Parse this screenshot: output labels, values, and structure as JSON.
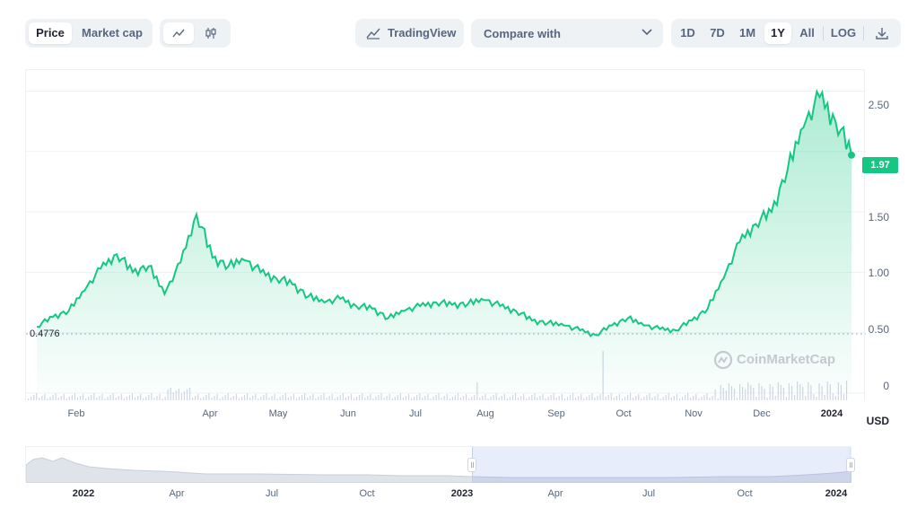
{
  "toolbar": {
    "type_tabs": [
      "Price",
      "Market cap"
    ],
    "active_type": "Price",
    "view_icons": [
      "line-chart-icon",
      "candlestick-icon"
    ],
    "tradingview_label": "TradingView",
    "compare_label": "Compare with",
    "ranges": [
      "1D",
      "7D",
      "1M",
      "1Y",
      "All"
    ],
    "active_range": "1Y",
    "log_label": "LOG",
    "download_icon": "download-icon"
  },
  "chart": {
    "current_price": "1.97",
    "min_label": "0.4776",
    "currency": "USD",
    "y_ticks": [
      "2.50",
      "1.97",
      "1.50",
      "1.00",
      "0.50",
      "0"
    ],
    "x_ticks": [
      "Feb",
      "Apr",
      "May",
      "Jun",
      "Jul",
      "Aug",
      "Sep",
      "Oct",
      "Nov",
      "Dec",
      "2024"
    ],
    "watermark": "CoinMarketCap",
    "color": "#16c784"
  },
  "chart_data": {
    "type": "area",
    "x": [
      "2023-01-15",
      "2023-01-22",
      "2023-02-01",
      "2023-02-08",
      "2023-02-15",
      "2023-02-22",
      "2023-03-01",
      "2023-03-08",
      "2023-03-15",
      "2023-03-22",
      "2023-03-29",
      "2023-04-05",
      "2023-04-12",
      "2023-04-19",
      "2023-04-26",
      "2023-05-03",
      "2023-05-10",
      "2023-05-17",
      "2023-05-24",
      "2023-05-31",
      "2023-06-07",
      "2023-06-14",
      "2023-06-21",
      "2023-06-28",
      "2023-07-05",
      "2023-07-12",
      "2023-07-19",
      "2023-07-26",
      "2023-08-02",
      "2023-08-09",
      "2023-08-16",
      "2023-08-23",
      "2023-08-30",
      "2023-09-06",
      "2023-09-13",
      "2023-09-20",
      "2023-09-27",
      "2023-10-04",
      "2023-10-11",
      "2023-10-18",
      "2023-10-25",
      "2023-11-01",
      "2023-11-08",
      "2023-11-15",
      "2023-11-22",
      "2023-11-29",
      "2023-12-06",
      "2023-12-13",
      "2023-12-20",
      "2023-12-27",
      "2024-01-03",
      "2024-01-10"
    ],
    "series": [
      {
        "values": [
          0.55,
          0.63,
          0.68,
          0.85,
          1.03,
          1.15,
          1.0,
          1.05,
          0.82,
          1.08,
          1.48,
          1.12,
          1.05,
          1.1,
          1.0,
          0.95,
          0.9,
          0.8,
          0.75,
          0.78,
          0.72,
          0.7,
          0.62,
          0.68,
          0.72,
          0.75,
          0.73,
          0.74,
          0.77,
          0.72,
          0.68,
          0.6,
          0.58,
          0.56,
          0.52,
          0.48,
          0.56,
          0.62,
          0.56,
          0.53,
          0.52,
          0.6,
          0.7,
          0.95,
          1.25,
          1.4,
          1.5,
          1.85,
          2.2,
          2.45,
          2.25,
          1.97
        ]
      }
    ],
    "ylim": [
      0,
      2.6
    ],
    "ylabel": "USD"
  }
}
